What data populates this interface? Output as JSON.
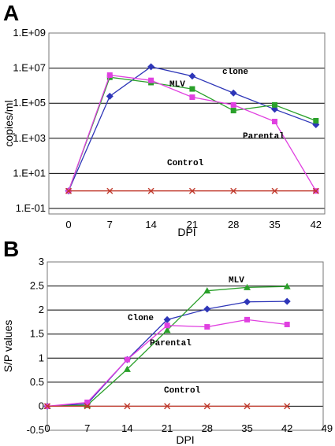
{
  "chart_data": [
    {
      "type": "line",
      "panel_label": "A",
      "xlabel": "DPI",
      "ylabel": "copies/ml",
      "y_scale": "log",
      "x_ticks": [
        0,
        7,
        14,
        21,
        28,
        35,
        42
      ],
      "y_ticks": [
        0.1,
        10,
        1000,
        100000,
        10000000,
        1000000000
      ],
      "y_tick_labels": [
        "1.E-01",
        "1.E+01",
        "1.E+03",
        "1.E+05",
        "1.E+07",
        "1.E+09"
      ],
      "ylim": [
        0.1,
        1000000000
      ],
      "grid": "horizontal",
      "annotations": [
        "clone",
        "MLV",
        "Parental",
        "Control"
      ],
      "series": [
        {
          "name": "clone",
          "color": "#2e36b8",
          "marker": "diamond",
          "x": [
            0,
            7,
            14,
            21,
            28,
            35,
            42
          ],
          "y": [
            1,
            250000,
            12000000,
            3500000,
            380000,
            45000,
            6000
          ]
        },
        {
          "name": "MLV",
          "color": "#2aa02a",
          "marker": "square",
          "x": [
            0,
            7,
            14,
            21,
            28,
            35,
            42
          ],
          "y": [
            1,
            3000000,
            1500000,
            650000,
            38000,
            80000,
            10000
          ]
        },
        {
          "name": "Parental",
          "color": "#e040e0",
          "marker": "square",
          "x": [
            0,
            7,
            14,
            21,
            28,
            35,
            42
          ],
          "y": [
            1,
            4000000,
            2000000,
            220000,
            80000,
            9000,
            1
          ]
        },
        {
          "name": "Control",
          "color": "#c0392b",
          "marker": "x",
          "x": [
            0,
            7,
            14,
            21,
            28,
            35,
            42
          ],
          "y": [
            1,
            1,
            1,
            1,
            1,
            1,
            1
          ]
        }
      ]
    },
    {
      "type": "line",
      "panel_label": "B",
      "xlabel": "DPI",
      "ylabel": "S/P values",
      "x_ticks": [
        0,
        7,
        14,
        21,
        28,
        35,
        42,
        49
      ],
      "xlim": [
        0,
        49
      ],
      "y_ticks": [
        -0.5,
        0,
        0.5,
        1,
        1.5,
        2,
        2.5,
        3
      ],
      "y_tick_labels": [
        "-0.5",
        "0",
        "0.5",
        "1",
        "1.5",
        "2",
        "2.5",
        "3"
      ],
      "ylim": [
        -0.5,
        3
      ],
      "grid": "horizontal",
      "annotations": [
        "MLV",
        "Clone",
        "Parental",
        "Control"
      ],
      "series": [
        {
          "name": "Clone",
          "color": "#2e36b8",
          "marker": "diamond",
          "x": [
            0,
            7,
            14,
            21,
            28,
            35,
            42
          ],
          "y": [
            0,
            0.05,
            0.97,
            1.8,
            2.02,
            2.17,
            2.18
          ]
        },
        {
          "name": "MLV",
          "color": "#2aa02a",
          "marker": "triangle",
          "x": [
            0,
            7,
            14,
            21,
            28,
            35,
            42
          ],
          "y": [
            0,
            0.02,
            0.77,
            1.58,
            2.4,
            2.47,
            2.49
          ]
        },
        {
          "name": "Parental",
          "color": "#e040e0",
          "marker": "square",
          "x": [
            0,
            7,
            14,
            21,
            28,
            35,
            42
          ],
          "y": [
            0,
            0.08,
            0.97,
            1.68,
            1.65,
            1.8,
            1.7
          ]
        },
        {
          "name": "Control",
          "color": "#c0392b",
          "marker": "x",
          "x": [
            0,
            7,
            14,
            21,
            28,
            35,
            42
          ],
          "y": [
            0,
            0,
            0,
            0,
            0,
            0,
            0
          ]
        }
      ]
    }
  ]
}
